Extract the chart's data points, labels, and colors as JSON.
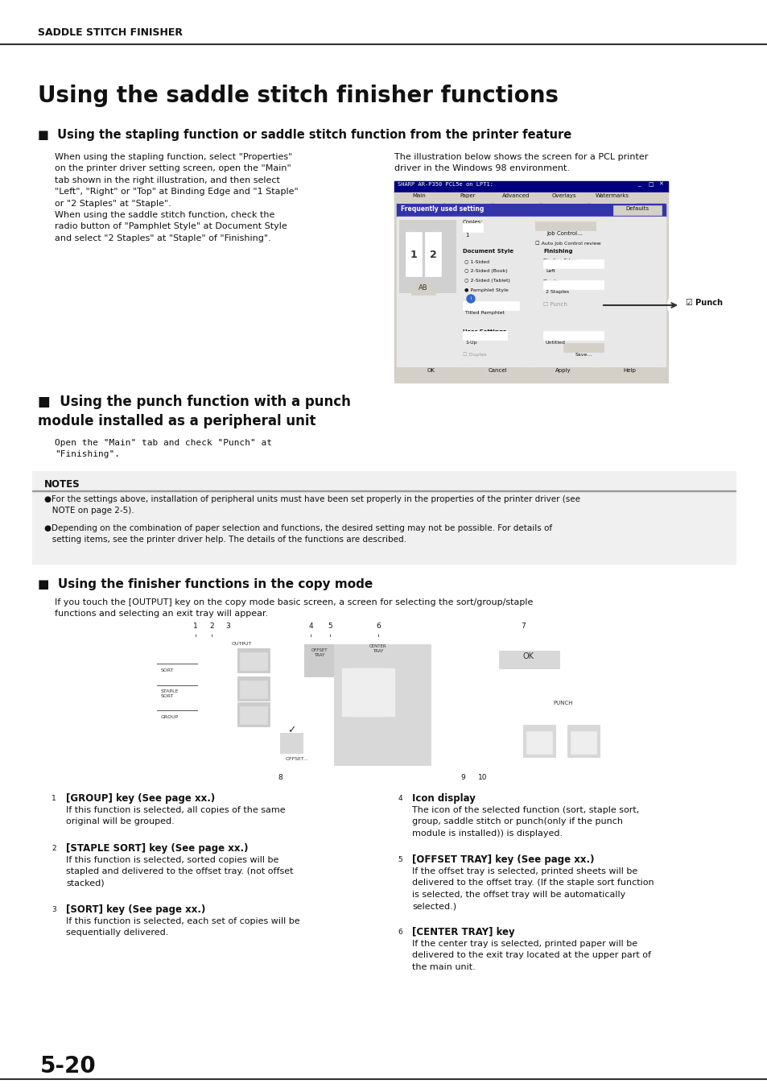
{
  "bg_color": "#ffffff",
  "header_text": "SADDLE STITCH FINISHER",
  "main_title": "Using the saddle stitch finisher functions",
  "section1_title": "■  Using the stapling function or saddle stitch function from the printer feature",
  "section1_left_col1": "When using the stapling function, select \"Properties\"\non the printer driver setting screen, open the \"Main\"\ntab shown in the right illustration, and then select\n\"Left\", \"Right\" or \"Top\" at Binding Edge and \"1 Staple\"\nor \"2 Staples\" at \"Staple\".\nWhen using the saddle stitch function, check the\nradio button of \"Pamphlet Style\" at Document Style\nand select \"2 Staples\" at \"Staple\" of \"Finishing\".",
  "section1_right_intro": "The illustration below shows the screen for a PCL printer\ndriver in the Windows 98 environment.",
  "section2_title_line1": "■  Using the punch function with a punch",
  "section2_title_line2": "module installed as a peripheral unit",
  "section2_text": "Open the \"Main\" tab and check \"Punch\" at\n\"Finishing\".",
  "notes_title": "NOTES",
  "notes_text1": "●For the settings above, installation of peripheral units must have been set properly in the properties of the printer driver (see\n   NOTE on page 2-5).",
  "notes_text2": "●Depending on the combination of paper selection and functions, the desired setting may not be possible. For details of\n   setting items, see the printer driver help. The details of the functions are described.",
  "section3_title": "■  Using the finisher functions in the copy mode",
  "section3_text": "If you touch the [OUTPUT] key on the copy mode basic screen, a screen for selecting the sort/group/staple\nfunctions and selecting an exit tray will appear.",
  "item1_num": "1",
  "item1_title": "[GROUP] key (See page xx.)",
  "item1_text": "If this function is selected, all copies of the same\noriginal will be grouped.",
  "item2_num": "2",
  "item2_title": "[STAPLE SORT] key (See page xx.)",
  "item2_text": "If this function is selected, sorted copies will be\nstapled and delivered to the offset tray. (not offset\nstacked)",
  "item3_num": "3",
  "item3_title": "[SORT] key (See page xx.)",
  "item3_text": "If this function is selected, each set of copies will be\nsequentially delivered.",
  "item4_num": "4",
  "item4_title": "Icon display",
  "item4_text": "The icon of the selected function (sort, staple sort,\ngroup, saddle stitch or punch(only if the punch\nmodule is installed)) is displayed.",
  "item5_num": "5",
  "item5_title": "[OFFSET TRAY] key (See page xx.)",
  "item5_text": "If the offset tray is selected, printed sheets will be\ndelivered to the offset tray. (If the staple sort function\nis selected, the offset tray will be automatically\nselected.)",
  "item6_num": "6",
  "item6_title": "[CENTER TRAY] key",
  "item6_text": "If the center tray is selected, printed paper will be\ndelivered to the exit tray located at the upper part of\nthe main unit.",
  "page_num": "5-20"
}
